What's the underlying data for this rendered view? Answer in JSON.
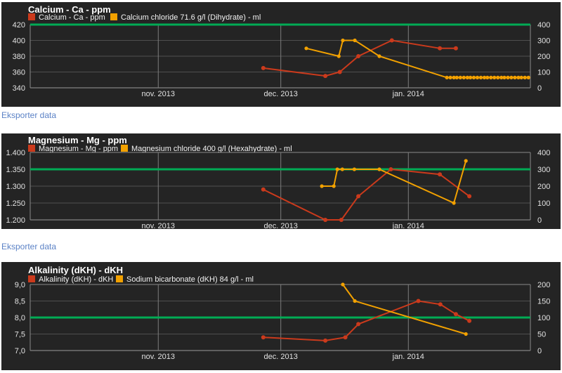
{
  "page": {
    "export_link_label": "Eksporter data"
  },
  "colors": {
    "page_bg": "#ffffff",
    "panel_bg": "#242424",
    "grid": "#4f4f4f",
    "grid_bright": "#8a8a8a",
    "axis_bottom": "#9a9a9a",
    "month_grid": "#7d7d7d",
    "axis_text": "#e2e2e2",
    "title_text": "#ffffff",
    "legend_text": "#f2f2f2",
    "target_green": "#00ab55",
    "series_red": "#cb3a1c",
    "series_orange": "#f2a100",
    "link_blue": "#5b82c6"
  },
  "chart_data": [
    {
      "type": "line",
      "title": "Calcium - Ca - ppm",
      "legend_position": "top",
      "grid": true,
      "x_axis": {
        "labels": [
          "nov. 2013",
          "dec. 2013",
          "jan. 2014"
        ],
        "positions": [
          0.256,
          0.501,
          0.756
        ]
      },
      "left_axis": {
        "min": 340,
        "max": 420,
        "ticks": [
          {
            "v": 420,
            "label": "420"
          },
          {
            "v": 400,
            "label": "400"
          },
          {
            "v": 380,
            "label": "380"
          },
          {
            "v": 360,
            "label": "360"
          },
          {
            "v": 340,
            "label": "340"
          }
        ]
      },
      "right_axis": {
        "min": 0,
        "max": 400,
        "ticks": [
          {
            "v": 400,
            "label": "400"
          },
          {
            "v": 300,
            "label": "300"
          },
          {
            "v": 200,
            "label": "200"
          },
          {
            "v": 100,
            "label": "100"
          },
          {
            "v": 0,
            "label": "0"
          }
        ]
      },
      "target_line": {
        "axis": "left",
        "value": 420
      },
      "series": [
        {
          "name": "Calcium - Ca - ppm",
          "axis": "left",
          "color_key": "series_red",
          "points": [
            {
              "x": 0.466,
              "v": 365
            },
            {
              "x": 0.59,
              "v": 355
            },
            {
              "x": 0.619,
              "v": 360
            },
            {
              "x": 0.656,
              "v": 380
            },
            {
              "x": 0.723,
              "v": 400
            },
            {
              "x": 0.819,
              "v": 390
            },
            {
              "x": 0.851,
              "v": 390
            }
          ]
        },
        {
          "name": "Calcium chloride 71.6 g/l (Dihydrate) - ml",
          "axis": "right",
          "color_key": "series_orange",
          "points": [
            {
              "x": 0.552,
              "v": 250
            },
            {
              "x": 0.617,
              "v": 200
            },
            {
              "x": 0.625,
              "v": 300
            },
            {
              "x": 0.649,
              "v": 300
            },
            {
              "x": 0.698,
              "v": 200
            },
            {
              "x": 0.833,
              "v": 65
            },
            {
              "x": 0.84,
              "v": 65
            },
            {
              "x": 0.847,
              "v": 65
            },
            {
              "x": 0.853,
              "v": 65
            },
            {
              "x": 0.86,
              "v": 65
            },
            {
              "x": 0.867,
              "v": 65
            },
            {
              "x": 0.874,
              "v": 65
            },
            {
              "x": 0.88,
              "v": 65
            },
            {
              "x": 0.887,
              "v": 65
            },
            {
              "x": 0.894,
              "v": 65
            },
            {
              "x": 0.901,
              "v": 65
            },
            {
              "x": 0.908,
              "v": 65
            },
            {
              "x": 0.914,
              "v": 65
            },
            {
              "x": 0.921,
              "v": 65
            },
            {
              "x": 0.928,
              "v": 65
            },
            {
              "x": 0.935,
              "v": 65
            },
            {
              "x": 0.942,
              "v": 65
            },
            {
              "x": 0.948,
              "v": 65
            },
            {
              "x": 0.955,
              "v": 65
            },
            {
              "x": 0.962,
              "v": 65
            },
            {
              "x": 0.969,
              "v": 65
            },
            {
              "x": 0.976,
              "v": 65
            },
            {
              "x": 0.982,
              "v": 65
            },
            {
              "x": 0.989,
              "v": 65
            },
            {
              "x": 0.996,
              "v": 65
            }
          ]
        }
      ]
    },
    {
      "type": "line",
      "title": "Magnesium - Mg - ppm",
      "legend_position": "top",
      "grid": true,
      "x_axis": {
        "labels": [
          "nov. 2013",
          "dec. 2013",
          "jan. 2014"
        ],
        "positions": [
          0.256,
          0.501,
          0.756
        ]
      },
      "left_axis": {
        "min": 1200,
        "max": 1400,
        "ticks": [
          {
            "v": 1400,
            "label": "1.400"
          },
          {
            "v": 1350,
            "label": "1.350"
          },
          {
            "v": 1300,
            "label": "1.300"
          },
          {
            "v": 1250,
            "label": "1.250"
          },
          {
            "v": 1200,
            "label": "1.200"
          }
        ]
      },
      "right_axis": {
        "min": 0,
        "max": 400,
        "ticks": [
          {
            "v": 400,
            "label": "400"
          },
          {
            "v": 300,
            "label": "300"
          },
          {
            "v": 200,
            "label": "200"
          },
          {
            "v": 100,
            "label": "100"
          },
          {
            "v": 0,
            "label": "0"
          }
        ]
      },
      "target_line": {
        "axis": "left",
        "value": 1350
      },
      "series": [
        {
          "name": "Magnesium - Mg - ppm",
          "axis": "left",
          "color_key": "series_red",
          "points": [
            {
              "x": 0.466,
              "v": 1290
            },
            {
              "x": 0.59,
              "v": 1200
            },
            {
              "x": 0.622,
              "v": 1200
            },
            {
              "x": 0.656,
              "v": 1270
            },
            {
              "x": 0.721,
              "v": 1350
            },
            {
              "x": 0.819,
              "v": 1335
            },
            {
              "x": 0.878,
              "v": 1270
            }
          ]
        },
        {
          "name": "Magnesium chloride 400 g/l (Hexahydrate) - ml",
          "axis": "right",
          "color_key": "series_orange",
          "points": [
            {
              "x": 0.583,
              "v": 200
            },
            {
              "x": 0.607,
              "v": 200
            },
            {
              "x": 0.614,
              "v": 300
            },
            {
              "x": 0.624,
              "v": 300
            },
            {
              "x": 0.648,
              "v": 300
            },
            {
              "x": 0.698,
              "v": 300
            },
            {
              "x": 0.847,
              "v": 100
            },
            {
              "x": 0.871,
              "v": 350
            }
          ]
        }
      ]
    },
    {
      "type": "line",
      "title": "Alkalinity (dKH) - dKH",
      "legend_position": "top",
      "grid": true,
      "x_axis": {
        "labels": [
          "nov. 2013",
          "dec. 2013",
          "jan. 2014"
        ],
        "positions": [
          0.256,
          0.501,
          0.756
        ]
      },
      "left_axis": {
        "min": 7.0,
        "max": 9.0,
        "ticks": [
          {
            "v": 9.0,
            "label": "9,0"
          },
          {
            "v": 8.5,
            "label": "8,5"
          },
          {
            "v": 8.0,
            "label": "8,0"
          },
          {
            "v": 7.5,
            "label": "7,5"
          },
          {
            "v": 7.0,
            "label": "7,0"
          }
        ]
      },
      "right_axis": {
        "min": 0,
        "max": 200,
        "ticks": [
          {
            "v": 200,
            "label": "200"
          },
          {
            "v": 150,
            "label": "150"
          },
          {
            "v": 100,
            "label": "100"
          },
          {
            "v": 50,
            "label": "50"
          },
          {
            "v": 0,
            "label": "0"
          }
        ]
      },
      "target_line": {
        "axis": "left",
        "value": 8.0
      },
      "series": [
        {
          "name": "Alkalinity (dKH) - dKH",
          "axis": "left",
          "color_key": "series_red",
          "points": [
            {
              "x": 0.466,
              "v": 7.4
            },
            {
              "x": 0.59,
              "v": 7.3
            },
            {
              "x": 0.63,
              "v": 7.4
            },
            {
              "x": 0.656,
              "v": 7.8
            },
            {
              "x": 0.776,
              "v": 8.5
            },
            {
              "x": 0.82,
              "v": 8.4
            },
            {
              "x": 0.851,
              "v": 8.1
            },
            {
              "x": 0.878,
              "v": 7.9
            }
          ]
        },
        {
          "name": "Sodium bicarbonate (dKH) 84 g/l - ml",
          "axis": "right",
          "color_key": "series_orange",
          "points": [
            {
              "x": 0.625,
              "v": 200
            },
            {
              "x": 0.649,
              "v": 150
            },
            {
              "x": 0.871,
              "v": 50
            }
          ]
        }
      ]
    }
  ]
}
